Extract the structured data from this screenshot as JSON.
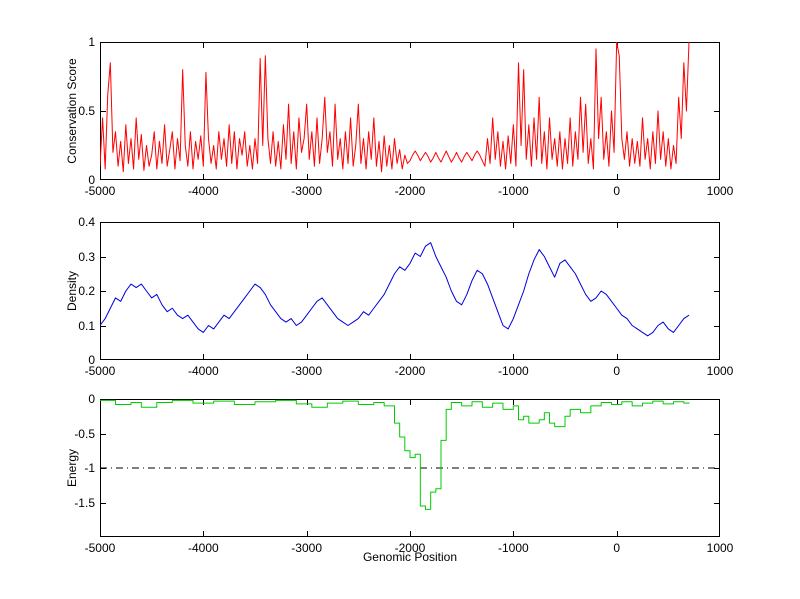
{
  "figure": {
    "background": "#ffffff",
    "axis_color": "#000000"
  },
  "chart_data": [
    {
      "id": "conservation",
      "type": "line",
      "title": "",
      "ylabel": "Conservation Score",
      "xlabel": "",
      "color": "#ff0000",
      "xlim": [
        -5000,
        1000
      ],
      "ylim": [
        0,
        1
      ],
      "xticks": [
        -5000,
        -4000,
        -3000,
        -2000,
        -1000,
        0,
        1000
      ],
      "yticks": [
        0,
        0.5,
        1
      ],
      "grid": false,
      "legend": "none",
      "x_start": -5000,
      "x_step": 25,
      "values": [
        0.1,
        0.45,
        0.08,
        0.62,
        0.85,
        0.2,
        0.35,
        0.1,
        0.28,
        0.06,
        0.4,
        0.12,
        0.3,
        0.08,
        0.45,
        0.15,
        0.33,
        0.07,
        0.25,
        0.1,
        0.18,
        0.35,
        0.08,
        0.28,
        0.12,
        0.4,
        0.1,
        0.22,
        0.35,
        0.08,
        0.3,
        0.14,
        0.8,
        0.25,
        0.1,
        0.35,
        0.08,
        0.28,
        0.15,
        0.32,
        0.1,
        0.78,
        0.3,
        0.12,
        0.25,
        0.08,
        0.35,
        0.15,
        0.3,
        0.1,
        0.4,
        0.12,
        0.35,
        0.08,
        0.3,
        0.18,
        0.35,
        0.1,
        0.25,
        0.08,
        0.3,
        0.12,
        0.88,
        0.25,
        0.9,
        0.3,
        0.12,
        0.35,
        0.1,
        0.28,
        0.08,
        0.4,
        0.15,
        0.55,
        0.12,
        0.35,
        0.08,
        0.45,
        0.2,
        0.3,
        0.55,
        0.15,
        0.35,
        0.1,
        0.45,
        0.12,
        0.3,
        0.6,
        0.2,
        0.35,
        0.1,
        0.55,
        0.15,
        0.3,
        0.08,
        0.35,
        0.12,
        0.45,
        0.1,
        0.25,
        0.55,
        0.12,
        0.3,
        0.08,
        0.35,
        0.15,
        0.45,
        0.1,
        0.28,
        0.06,
        0.32,
        0.1,
        0.25,
        0.08,
        0.3,
        0.12,
        0.22,
        0.08,
        0.18,
        0.12,
        0.14,
        0.18,
        0.21,
        0.18,
        0.14,
        0.17,
        0.2,
        0.17,
        0.13,
        0.16,
        0.2,
        0.16,
        0.13,
        0.17,
        0.21,
        0.17,
        0.13,
        0.16,
        0.2,
        0.16,
        0.13,
        0.17,
        0.2,
        0.17,
        0.14,
        0.18,
        0.21,
        0.18,
        0.14,
        0.1,
        0.3,
        0.12,
        0.45,
        0.15,
        0.35,
        0.1,
        0.28,
        0.08,
        0.32,
        0.12,
        0.4,
        0.1,
        0.85,
        0.25,
        0.8,
        0.15,
        0.4,
        0.1,
        0.45,
        0.15,
        0.6,
        0.12,
        0.35,
        0.08,
        0.45,
        0.15,
        0.3,
        0.1,
        0.35,
        0.08,
        0.3,
        0.12,
        0.45,
        0.1,
        0.35,
        0.15,
        0.6,
        0.2,
        0.55,
        0.12,
        0.3,
        0.08,
        0.95,
        0.3,
        0.6,
        0.15,
        0.35,
        0.1,
        0.5,
        0.2,
        1.0,
        0.9,
        0.3,
        0.15,
        0.35,
        0.1,
        0.3,
        0.12,
        0.28,
        0.1,
        0.45,
        0.15,
        0.3,
        0.08,
        0.35,
        0.12,
        0.5,
        0.15,
        0.35,
        0.1,
        0.3,
        0.08,
        0.25,
        0.12,
        0.6,
        0.3,
        0.85,
        0.5,
        1.0
      ]
    },
    {
      "id": "density",
      "type": "line",
      "title": "",
      "ylabel": "Density",
      "xlabel": "",
      "color": "#0000dd",
      "xlim": [
        -5000,
        1000
      ],
      "ylim": [
        0,
        0.4
      ],
      "xticks": [
        -5000,
        -4000,
        -3000,
        -2000,
        -1000,
        0,
        1000
      ],
      "yticks": [
        0,
        0.1,
        0.2,
        0.3,
        0.4
      ],
      "grid": false,
      "legend": "none",
      "x_start": -5000,
      "x_step": 50,
      "values": [
        0.1,
        0.12,
        0.15,
        0.18,
        0.17,
        0.2,
        0.22,
        0.21,
        0.22,
        0.2,
        0.18,
        0.19,
        0.16,
        0.14,
        0.15,
        0.13,
        0.12,
        0.13,
        0.11,
        0.09,
        0.08,
        0.1,
        0.09,
        0.11,
        0.13,
        0.12,
        0.14,
        0.16,
        0.18,
        0.2,
        0.22,
        0.21,
        0.19,
        0.16,
        0.14,
        0.12,
        0.11,
        0.12,
        0.1,
        0.11,
        0.13,
        0.15,
        0.17,
        0.18,
        0.16,
        0.14,
        0.12,
        0.11,
        0.1,
        0.11,
        0.12,
        0.14,
        0.13,
        0.15,
        0.17,
        0.19,
        0.22,
        0.25,
        0.27,
        0.26,
        0.28,
        0.31,
        0.3,
        0.33,
        0.34,
        0.3,
        0.27,
        0.24,
        0.2,
        0.17,
        0.16,
        0.19,
        0.23,
        0.26,
        0.25,
        0.22,
        0.18,
        0.14,
        0.1,
        0.09,
        0.12,
        0.16,
        0.2,
        0.25,
        0.29,
        0.32,
        0.3,
        0.27,
        0.24,
        0.28,
        0.29,
        0.27,
        0.25,
        0.22,
        0.19,
        0.17,
        0.18,
        0.2,
        0.19,
        0.17,
        0.15,
        0.13,
        0.12,
        0.1,
        0.09,
        0.08,
        0.07,
        0.08,
        0.1,
        0.11,
        0.09,
        0.08,
        0.1,
        0.12,
        0.13
      ]
    },
    {
      "id": "energy",
      "type": "stairs",
      "title": "",
      "ylabel": "Energy",
      "xlabel": "Genomic Position",
      "color": "#00cc00",
      "xlim": [
        -5000,
        1000
      ],
      "ylim": [
        -2,
        0
      ],
      "xticks": [
        -5000,
        -4000,
        -3000,
        -2000,
        -1000,
        0,
        1000
      ],
      "yticks": [
        0,
        -0.5,
        -1,
        -1.5
      ],
      "grid": false,
      "legend": "none",
      "ref_line": {
        "y": -1,
        "style": "dash-dot",
        "color": "#000000"
      },
      "points": [
        [
          -5000,
          -0.02
        ],
        [
          -4850,
          -0.08
        ],
        [
          -4700,
          -0.05
        ],
        [
          -4600,
          -0.12
        ],
        [
          -4450,
          -0.05
        ],
        [
          -4300,
          -0.02
        ],
        [
          -4100,
          -0.06
        ],
        [
          -3900,
          -0.03
        ],
        [
          -3700,
          -0.08
        ],
        [
          -3500,
          -0.04
        ],
        [
          -3300,
          -0.02
        ],
        [
          -3100,
          -0.07
        ],
        [
          -2950,
          -0.12
        ],
        [
          -2800,
          -0.06
        ],
        [
          -2650,
          -0.03
        ],
        [
          -2500,
          -0.08
        ],
        [
          -2350,
          -0.05
        ],
        [
          -2250,
          -0.1
        ],
        [
          -2150,
          -0.35
        ],
        [
          -2100,
          -0.55
        ],
        [
          -2050,
          -0.75
        ],
        [
          -2000,
          -0.85
        ],
        [
          -1950,
          -0.8
        ],
        [
          -1900,
          -1.55
        ],
        [
          -1850,
          -1.6
        ],
        [
          -1800,
          -1.35
        ],
        [
          -1750,
          -1.3
        ],
        [
          -1700,
          -0.6
        ],
        [
          -1650,
          -0.15
        ],
        [
          -1600,
          -0.05
        ],
        [
          -1500,
          -0.1
        ],
        [
          -1400,
          -0.04
        ],
        [
          -1300,
          -0.12
        ],
        [
          -1200,
          -0.06
        ],
        [
          -1100,
          -0.15
        ],
        [
          -1000,
          -0.1
        ],
        [
          -950,
          -0.3
        ],
        [
          -900,
          -0.25
        ],
        [
          -850,
          -0.35
        ],
        [
          -750,
          -0.3
        ],
        [
          -700,
          -0.2
        ],
        [
          -650,
          -0.35
        ],
        [
          -600,
          -0.4
        ],
        [
          -500,
          -0.25
        ],
        [
          -450,
          -0.15
        ],
        [
          -350,
          -0.2
        ],
        [
          -250,
          -0.1
        ],
        [
          -150,
          -0.05
        ],
        [
          -50,
          -0.08
        ],
        [
          50,
          -0.04
        ],
        [
          150,
          -0.1
        ],
        [
          250,
          -0.06
        ],
        [
          350,
          -0.03
        ],
        [
          450,
          -0.07
        ],
        [
          550,
          -0.04
        ],
        [
          650,
          -0.06
        ],
        [
          700,
          -0.05
        ]
      ]
    }
  ]
}
